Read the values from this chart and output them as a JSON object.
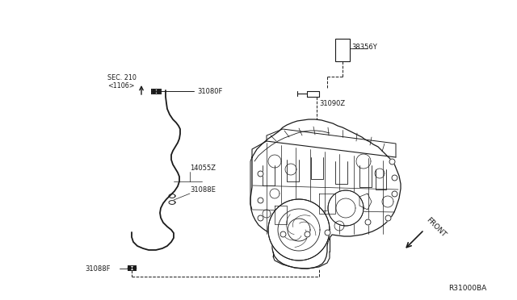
{
  "background_color": "#ffffff",
  "line_color": "#1a1a1a",
  "label_color": "#1a1a1a",
  "fig_width": 6.4,
  "fig_height": 3.72,
  "dpi": 100,
  "labels": {
    "sec_210": "SEC. 210",
    "sec_210b": "<1106>",
    "label_31080F_top": "31080F",
    "label_14055Z": "14055Z",
    "label_31088E": "31088E",
    "label_31088F_bot": "31088F",
    "label_38356Y": "38356Y",
    "label_31090Z": "31090Z",
    "front": "FRONT",
    "ref_code": "R31000BA"
  }
}
